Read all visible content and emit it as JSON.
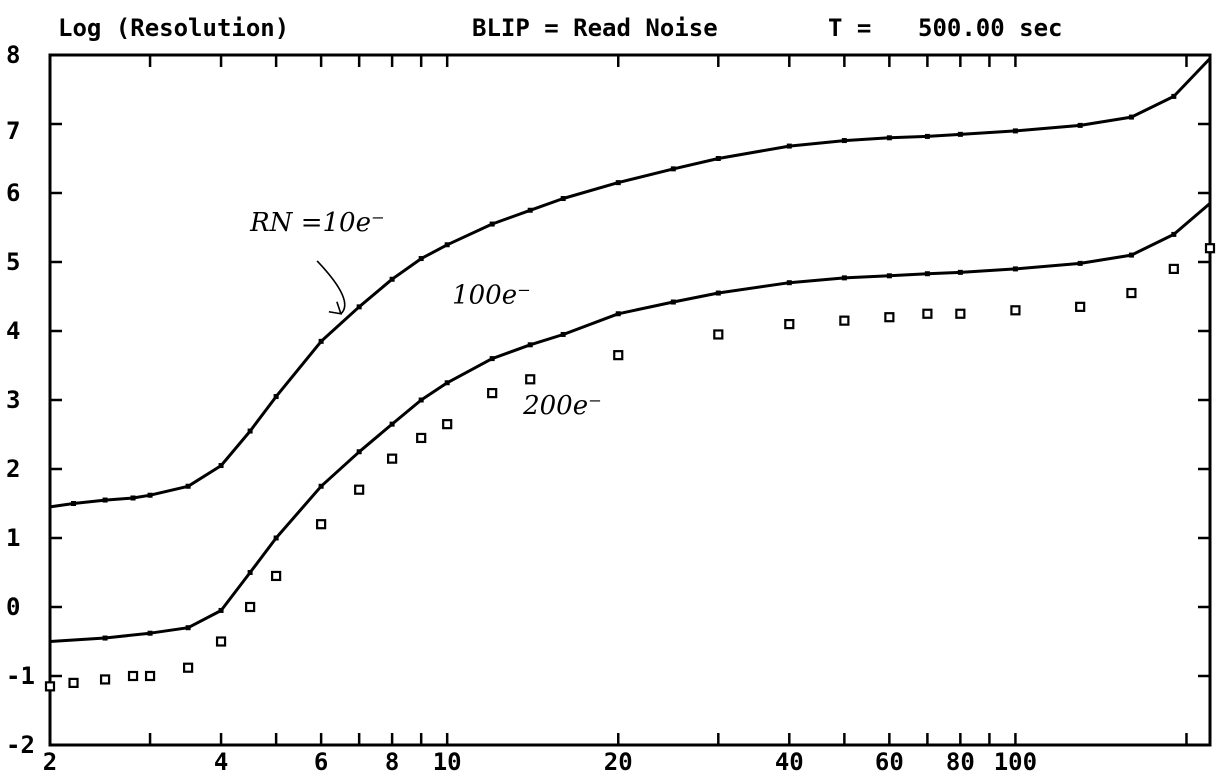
{
  "header": {
    "title": "Log (Resolution)",
    "blip": "BLIP = Read Noise",
    "time_label": "T =",
    "time_value": "500.00 sec"
  },
  "chart_data": {
    "type": "line",
    "xscale": "log",
    "xlim": [
      2,
      220
    ],
    "ylim": [
      -2,
      8
    ],
    "grid": false,
    "legend": "none",
    "xticks": [
      2,
      3,
      4,
      5,
      6,
      7,
      8,
      9,
      10,
      20,
      30,
      40,
      50,
      60,
      70,
      80,
      90,
      100,
      200
    ],
    "xtick_labels": [
      {
        "x": 2,
        "label": "2"
      },
      {
        "x": 4,
        "label": "4"
      },
      {
        "x": 6,
        "label": "6"
      },
      {
        "x": 8,
        "label": "8"
      },
      {
        "x": 10,
        "label": "10"
      },
      {
        "x": 20,
        "label": "20"
      },
      {
        "x": 40,
        "label": "40"
      },
      {
        "x": 60,
        "label": "60"
      },
      {
        "x": 80,
        "label": "80"
      },
      {
        "x": 100,
        "label": "100"
      }
    ],
    "yticks": [
      -2,
      -1,
      0,
      1,
      2,
      3,
      4,
      5,
      6,
      7,
      8
    ],
    "ytick_labels": [
      {
        "y": 8,
        "label": "8"
      },
      {
        "y": 6.9,
        "label": "7"
      },
      {
        "y": 6.0,
        "label": "6"
      },
      {
        "y": 5.0,
        "label": "5"
      },
      {
        "y": 4.0,
        "label": "4"
      },
      {
        "y": 3.0,
        "label": "3"
      },
      {
        "y": 2.0,
        "label": "2"
      },
      {
        "y": 1.0,
        "label": "1"
      },
      {
        "y": 0.0,
        "label": "0"
      },
      {
        "y": -1.0,
        "label": "-1"
      },
      {
        "y": -2.0,
        "label": "-2"
      }
    ],
    "series": [
      {
        "style": "line",
        "x": [
          2,
          2.2,
          2.5,
          2.8,
          3.0,
          3.5,
          4.0,
          4.5,
          5,
          6,
          7,
          8,
          9,
          10,
          12,
          14,
          16,
          20,
          25,
          30,
          40,
          50,
          60,
          70,
          80,
          100,
          130,
          160,
          190,
          220
        ],
        "y": [
          1.45,
          1.5,
          1.55,
          1.58,
          1.62,
          1.75,
          2.05,
          2.55,
          3.05,
          3.85,
          4.35,
          4.75,
          5.05,
          5.25,
          5.55,
          5.75,
          5.92,
          6.15,
          6.35,
          6.5,
          6.68,
          6.76,
          6.8,
          6.82,
          6.85,
          6.9,
          6.98,
          7.1,
          7.4,
          7.95
        ]
      },
      {
        "style": "line",
        "x": [
          2,
          2.5,
          3.0,
          3.5,
          4.0,
          4.5,
          5,
          6,
          7,
          8,
          9,
          10,
          12,
          14,
          16,
          20,
          25,
          30,
          40,
          50,
          60,
          70,
          80,
          100,
          130,
          160,
          190,
          220
        ],
        "y": [
          -0.5,
          -0.45,
          -0.38,
          -0.3,
          -0.05,
          0.5,
          1.0,
          1.75,
          2.25,
          2.65,
          3.0,
          3.25,
          3.6,
          3.8,
          3.95,
          4.25,
          4.42,
          4.55,
          4.7,
          4.77,
          4.8,
          4.83,
          4.85,
          4.9,
          4.98,
          5.1,
          5.4,
          5.85
        ]
      },
      {
        "style": "scatter",
        "x": [
          2,
          2.2,
          2.5,
          2.8,
          3.0,
          3.5,
          4.0,
          4.5,
          5,
          6,
          7,
          8,
          9,
          10,
          12,
          14,
          20,
          30,
          40,
          50,
          60,
          70,
          80,
          100,
          130,
          160,
          190,
          220
        ],
        "y": [
          -1.15,
          -1.1,
          -1.05,
          -1.0,
          -1.0,
          -0.88,
          -0.5,
          0.0,
          0.45,
          1.2,
          1.7,
          2.15,
          2.45,
          2.65,
          3.1,
          3.3,
          3.65,
          3.95,
          4.1,
          4.15,
          4.2,
          4.25,
          4.25,
          4.3,
          4.35,
          4.55,
          4.9,
          5.2
        ]
      }
    ],
    "annotations": [
      {
        "text": "RN =10e⁻",
        "x": 4.5,
        "y": 5.45,
        "arrow_to": [
          6.5,
          4.25
        ]
      },
      {
        "text": "100e⁻",
        "x": 10.2,
        "y": 4.4
      },
      {
        "text": "200e⁻",
        "x": 13.6,
        "y": 2.8
      }
    ]
  }
}
